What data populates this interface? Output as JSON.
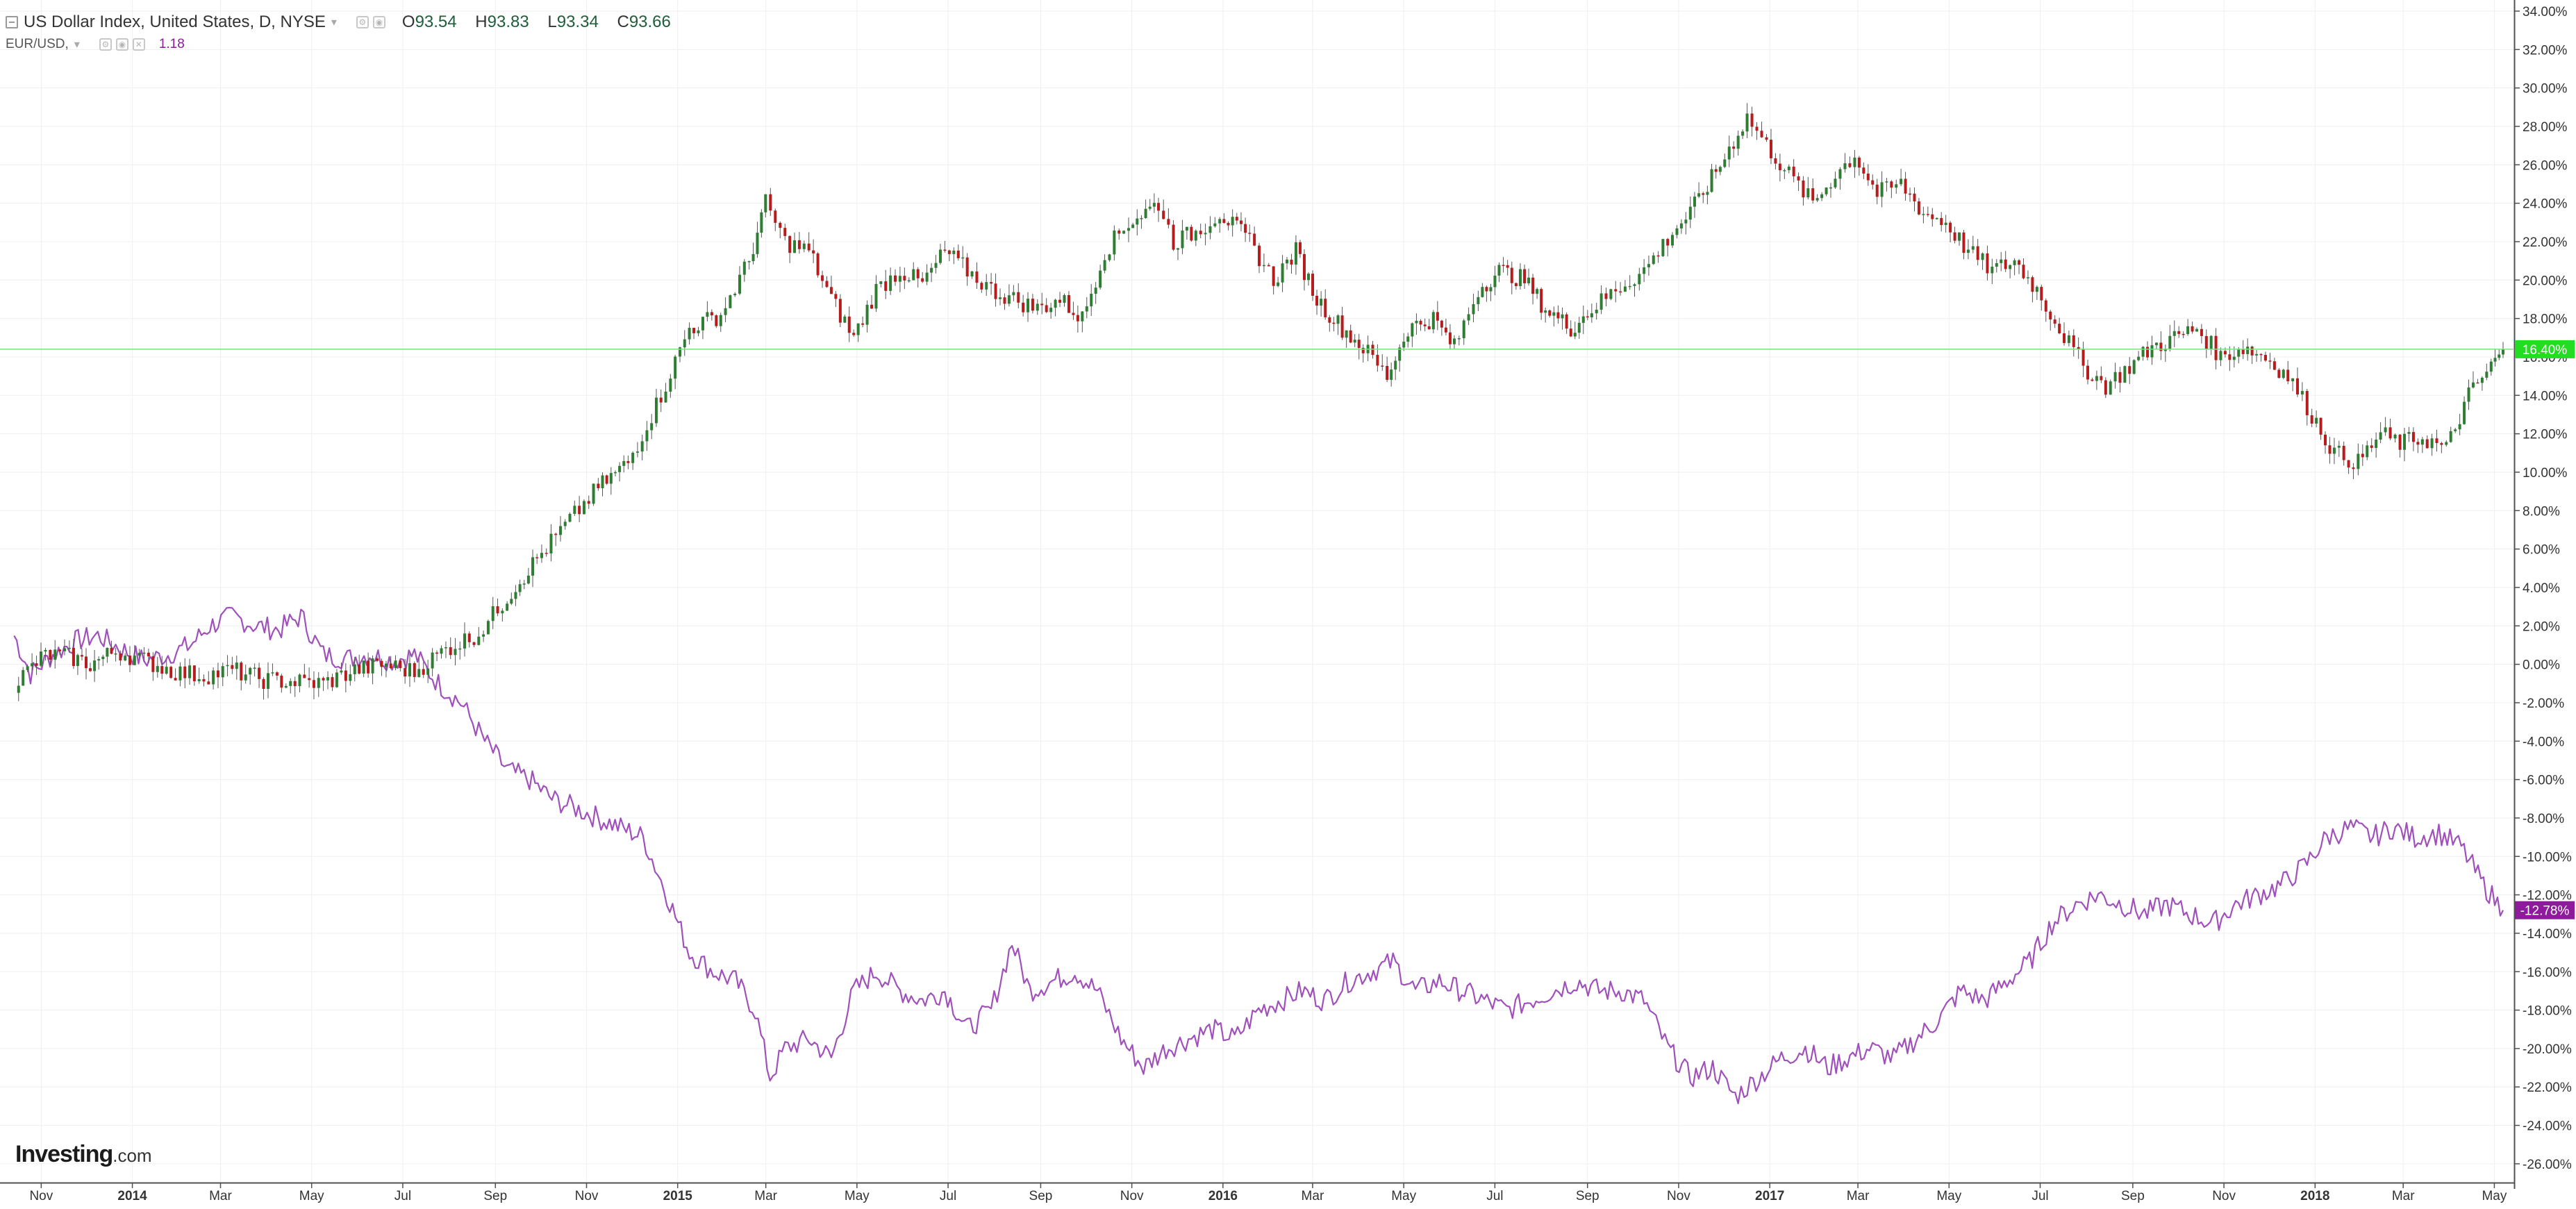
{
  "header": {
    "symbol_title": "US Dollar Index, United States, D, NYSE",
    "ohlc": [
      {
        "key": "O",
        "value": "93.54"
      },
      {
        "key": "H",
        "value": "93.83"
      },
      {
        "key": "L",
        "value": "93.34"
      },
      {
        "key": "C",
        "value": "93.66"
      }
    ],
    "compare_symbol": "EUR/USD,",
    "compare_value": "1.18"
  },
  "watermark": {
    "brand": "Investing",
    "domain": ".com"
  },
  "chart_data": {
    "type": "line",
    "title": "",
    "xlabel": "",
    "ylabel": "",
    "x_ticks": [
      "Nov",
      "2014",
      "Mar",
      "May",
      "Jul",
      "Sep",
      "Nov",
      "2015",
      "Mar",
      "May",
      "Jul",
      "Sep",
      "Nov",
      "2016",
      "Mar",
      "May",
      "Jul",
      "Sep",
      "Nov",
      "2017",
      "Mar",
      "May",
      "Jul",
      "Sep",
      "Nov",
      "2018",
      "Mar",
      "May"
    ],
    "y_ticks": [
      "34.00%",
      "32.00%",
      "30.00%",
      "28.00%",
      "26.00%",
      "24.00%",
      "22.00%",
      "20.00%",
      "18.00%",
      "16.00%",
      "14.00%",
      "12.00%",
      "10.00%",
      "8.00%",
      "6.00%",
      "4.00%",
      "2.00%",
      "0.00%",
      "-2.00%",
      "-4.00%",
      "-6.00%",
      "-8.00%",
      "-10.00%",
      "-12.00%",
      "-14.00%",
      "-16.00%",
      "-18.00%",
      "-20.00%",
      "-22.00%",
      "-24.00%",
      "-26.00%"
    ],
    "ylim": [
      -26.5,
      34.5
    ],
    "grid": true,
    "colors": {
      "up": "#2e7d32",
      "down": "#b71c1c",
      "eurusd": "#a050bb",
      "last_dxy": "#22dd22",
      "last_eurusd": "#8e1a9c"
    },
    "last_labels": {
      "dxy": "16.40%",
      "eurusd": "-12.78%"
    },
    "series": [
      {
        "name": "US Dollar Index",
        "kind": "candlestick",
        "x": [
          "2013-10-25",
          "2013-11-15",
          "2013-12-01",
          "2013-12-15",
          "2014-01-01",
          "2014-01-20",
          "2014-02-10",
          "2014-03-01",
          "2014-03-20",
          "2014-04-10",
          "2014-05-01",
          "2014-05-20",
          "2014-06-10",
          "2014-07-01",
          "2014-07-20",
          "2014-08-10",
          "2014-09-01",
          "2014-09-20",
          "2014-10-10",
          "2014-11-01",
          "2014-11-20",
          "2014-12-10",
          "2015-01-01",
          "2015-01-20",
          "2015-02-10",
          "2015-03-01",
          "2015-03-12",
          "2015-03-25",
          "2015-04-10",
          "2015-04-25",
          "2015-05-10",
          "2015-05-25",
          "2015-06-10",
          "2015-06-25",
          "2015-07-10",
          "2015-07-25",
          "2015-08-10",
          "2015-08-25",
          "2015-09-10",
          "2015-09-25",
          "2015-10-10",
          "2015-10-25",
          "2015-11-10",
          "2015-11-30",
          "2015-12-10",
          "2015-12-25",
          "2016-01-10",
          "2016-01-30",
          "2016-02-15",
          "2016-03-01",
          "2016-03-15",
          "2016-04-01",
          "2016-04-15",
          "2016-05-01",
          "2016-05-15",
          "2016-06-01",
          "2016-06-15",
          "2016-07-01",
          "2016-07-15",
          "2016-08-01",
          "2016-08-15",
          "2016-09-01",
          "2016-09-15",
          "2016-10-01",
          "2016-10-20",
          "2016-11-08",
          "2016-11-20",
          "2016-12-10",
          "2016-12-28",
          "2017-01-10",
          "2017-01-25",
          "2017-02-10",
          "2017-02-25",
          "2017-03-10",
          "2017-03-25",
          "2017-04-10",
          "2017-04-25",
          "2017-05-10",
          "2017-05-25",
          "2017-06-10",
          "2017-06-25",
          "2017-07-10",
          "2017-07-25",
          "2017-08-10",
          "2017-08-25",
          "2017-09-10",
          "2017-09-25",
          "2017-10-10",
          "2017-10-25",
          "2017-11-10",
          "2017-11-25",
          "2017-12-10",
          "2017-12-25",
          "2018-01-10",
          "2018-01-25",
          "2018-02-10",
          "2018-02-25",
          "2018-03-10",
          "2018-03-25",
          "2018-04-10",
          "2018-04-25",
          "2018-05-10",
          "2018-05-18"
        ],
        "values": [
          -1.0,
          0.5,
          0.4,
          0.0,
          0.7,
          0.2,
          -0.4,
          -0.6,
          -0.3,
          -0.8,
          -0.9,
          -1.0,
          -0.3,
          0.0,
          -0.4,
          0.8,
          1.6,
          3.5,
          5.5,
          7.5,
          9.2,
          10.5,
          14.0,
          17.5,
          18.2,
          21.0,
          24.0,
          22.0,
          21.5,
          19.0,
          17.0,
          19.5,
          20.5,
          19.8,
          21.5,
          20.5,
          19.5,
          19.0,
          18.5,
          19.0,
          18.0,
          21.5,
          23.0,
          24.0,
          22.0,
          22.5,
          23.5,
          22.0,
          20.0,
          21.5,
          19.0,
          17.5,
          16.5,
          15.0,
          17.5,
          18.0,
          16.5,
          19.5,
          20.5,
          20.0,
          18.5,
          17.5,
          18.5,
          19.5,
          20.5,
          22.5,
          23.5,
          26.0,
          28.5,
          27.0,
          25.5,
          24.0,
          25.5,
          26.5,
          24.5,
          25.0,
          23.5,
          23.0,
          21.5,
          20.5,
          21.0,
          19.5,
          17.5,
          15.5,
          14.5,
          15.5,
          16.5,
          17.0,
          17.5,
          16.0,
          16.5,
          16.0,
          15.0,
          13.0,
          11.0,
          10.5,
          12.0,
          11.5,
          11.8,
          11.2,
          14.0,
          15.5,
          16.4
        ]
      },
      {
        "name": "EUR/USD",
        "kind": "line",
        "x": [
          "2013-10-25",
          "2013-11-05",
          "2013-11-20",
          "2013-12-05",
          "2013-12-20",
          "2014-01-05",
          "2014-01-20",
          "2014-02-05",
          "2014-02-20",
          "2014-03-05",
          "2014-03-20",
          "2014-04-05",
          "2014-04-20",
          "2014-05-05",
          "2014-05-20",
          "2014-06-05",
          "2014-06-20",
          "2014-07-05",
          "2014-07-20",
          "2014-08-05",
          "2014-08-20",
          "2014-09-05",
          "2014-09-20",
          "2014-10-05",
          "2014-10-20",
          "2014-11-05",
          "2014-11-20",
          "2014-12-05",
          "2014-12-20",
          "2015-01-05",
          "2015-01-20",
          "2015-02-05",
          "2015-02-20",
          "2015-03-05",
          "2015-03-15",
          "2015-03-25",
          "2015-04-10",
          "2015-04-25",
          "2015-05-10",
          "2015-05-25",
          "2015-06-10",
          "2015-06-25",
          "2015-07-10",
          "2015-07-25",
          "2015-08-10",
          "2015-08-24",
          "2015-09-05",
          "2015-09-20",
          "2015-10-05",
          "2015-10-20",
          "2015-11-05",
          "2015-11-20",
          "2015-12-05",
          "2015-12-20",
          "2016-01-05",
          "2016-01-20",
          "2016-02-05",
          "2016-02-20",
          "2016-03-05",
          "2016-03-20",
          "2016-04-05",
          "2016-04-20",
          "2016-05-05",
          "2016-05-20",
          "2016-06-05",
          "2016-06-20",
          "2016-07-05",
          "2016-07-20",
          "2016-08-05",
          "2016-08-20",
          "2016-09-05",
          "2016-09-20",
          "2016-10-05",
          "2016-10-20",
          "2016-11-05",
          "2016-11-20",
          "2016-12-05",
          "2016-12-20",
          "2017-01-05",
          "2017-01-20",
          "2017-02-05",
          "2017-02-20",
          "2017-03-05",
          "2017-03-20",
          "2017-04-05",
          "2017-04-20",
          "2017-05-05",
          "2017-05-20",
          "2017-06-05",
          "2017-06-20",
          "2017-07-05",
          "2017-07-20",
          "2017-08-05",
          "2017-08-20",
          "2017-09-05",
          "2017-09-20",
          "2017-10-05",
          "2017-10-20",
          "2017-11-05",
          "2017-11-20",
          "2017-12-05",
          "2017-12-20",
          "2018-01-05",
          "2018-01-20",
          "2018-02-05",
          "2018-02-20",
          "2018-03-05",
          "2018-03-20",
          "2018-04-05",
          "2018-04-20",
          "2018-05-05",
          "2018-05-18"
        ],
        "values": [
          1.5,
          -0.5,
          0.5,
          1.2,
          1.5,
          0.8,
          0.2,
          0.5,
          1.0,
          2.0,
          2.5,
          2.0,
          1.8,
          2.5,
          0.5,
          0.3,
          0.5,
          0.2,
          0.5,
          -1.0,
          -2.0,
          -4.0,
          -5.5,
          -6.0,
          -7.0,
          -7.5,
          -8.0,
          -8.5,
          -9.0,
          -12.0,
          -15.0,
          -16.0,
          -16.5,
          -18.0,
          -21.5,
          -20.0,
          -19.5,
          -20.5,
          -17.0,
          -16.0,
          -17.0,
          -17.5,
          -17.0,
          -19.0,
          -18.0,
          -14.5,
          -17.0,
          -16.5,
          -16.0,
          -17.0,
          -19.5,
          -21.0,
          -20.0,
          -19.5,
          -19.0,
          -19.5,
          -18.0,
          -17.5,
          -17.0,
          -17.5,
          -16.5,
          -16.0,
          -15.5,
          -17.0,
          -16.5,
          -17.0,
          -17.5,
          -18.0,
          -17.5,
          -17.0,
          -16.5,
          -17.0,
          -17.0,
          -17.5,
          -20.0,
          -21.5,
          -21.0,
          -22.5,
          -21.5,
          -20.5,
          -20.0,
          -21.0,
          -20.5,
          -20.0,
          -20.5,
          -19.5,
          -18.5,
          -17.0,
          -17.5,
          -16.5,
          -15.5,
          -13.5,
          -12.5,
          -12.0,
          -12.5,
          -13.0,
          -12.5,
          -13.0,
          -13.5,
          -12.5,
          -12.0,
          -11.5,
          -10.5,
          -9.0,
          -8.5,
          -9.0,
          -8.5,
          -9.0,
          -8.8,
          -9.5,
          -11.5,
          -12.8
        ]
      }
    ]
  }
}
